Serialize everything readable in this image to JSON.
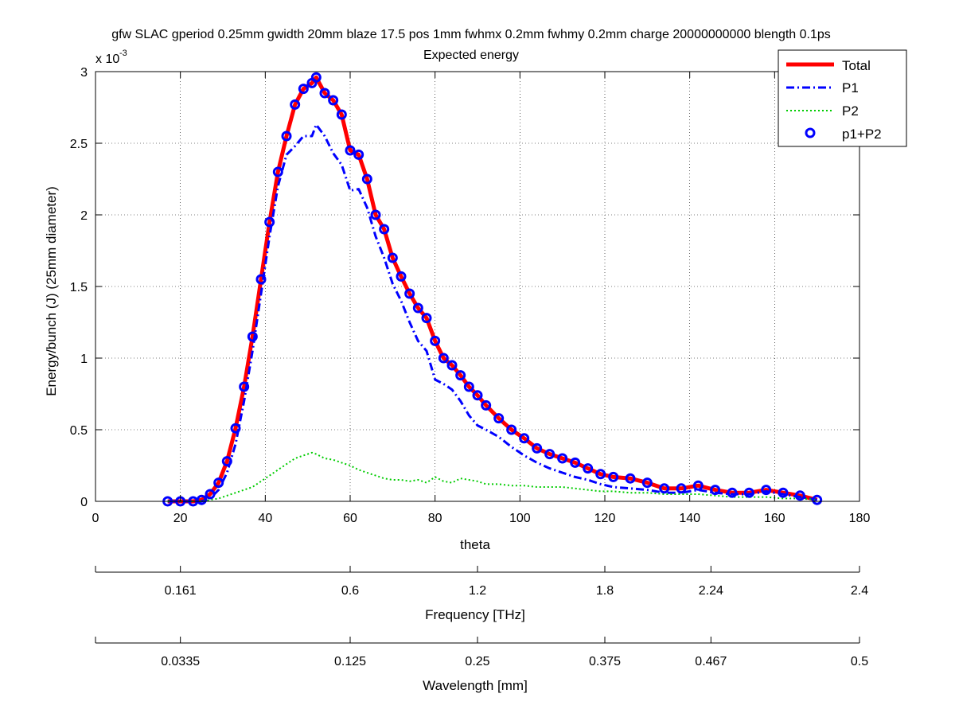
{
  "chart_data": {
    "type": "line",
    "title_line1": "gfw SLAC gperiod 0.25mm gwidth 20mm blaze 17.5 pos 1mm fwhmx 0.2mm fwhmy 0.2mm charge 20000000000 blength 0.1ps",
    "title_line2": "Expected energy",
    "xlabel": "theta",
    "ylabel": "Energy/bunch (J) (25mm diameter)",
    "y_exponent_base": "x 10",
    "y_exponent_power": "-3",
    "xlim": [
      0,
      180
    ],
    "ylim": [
      0,
      3
    ],
    "xticks": [
      0,
      20,
      40,
      60,
      80,
      100,
      120,
      140,
      160,
      180
    ],
    "yticks": [
      0,
      0.5,
      1,
      1.5,
      2,
      2.5,
      3
    ],
    "ytick_labels": [
      "0",
      "0.5",
      "1",
      "1.5",
      "2",
      "2.5",
      "3"
    ],
    "grid": true,
    "legend_position": "top-right",
    "series": [
      {
        "name": "Total",
        "color": "#ff0000",
        "style": "solid-thick",
        "x": [
          17,
          20,
          23,
          25,
          27,
          29,
          31,
          33,
          35,
          37,
          39,
          41,
          43,
          45,
          47,
          49,
          51,
          52,
          54,
          56,
          58,
          60,
          62,
          64,
          66,
          68,
          70,
          72,
          74,
          76,
          78,
          80,
          82,
          84,
          86,
          88,
          90,
          92,
          95,
          98,
          101,
          104,
          107,
          110,
          113,
          116,
          119,
          122,
          126,
          130,
          134,
          138,
          142,
          146,
          150,
          154,
          158,
          162,
          166,
          170
        ],
        "y": [
          0,
          0,
          0,
          0.01,
          0.05,
          0.13,
          0.28,
          0.51,
          0.8,
          1.15,
          1.55,
          1.95,
          2.3,
          2.55,
          2.77,
          2.88,
          2.92,
          2.96,
          2.85,
          2.8,
          2.7,
          2.45,
          2.42,
          2.25,
          2.0,
          1.9,
          1.7,
          1.57,
          1.45,
          1.35,
          1.28,
          1.12,
          1.0,
          0.95,
          0.88,
          0.8,
          0.74,
          0.67,
          0.58,
          0.5,
          0.44,
          0.37,
          0.33,
          0.3,
          0.27,
          0.23,
          0.19,
          0.17,
          0.16,
          0.13,
          0.09,
          0.09,
          0.11,
          0.08,
          0.06,
          0.06,
          0.08,
          0.06,
          0.04,
          0.01
        ]
      },
      {
        "name": "P1",
        "color": "#0000ff",
        "style": "dash-dot",
        "x": [
          17,
          20,
          23,
          25,
          27,
          29,
          31,
          33,
          35,
          37,
          39,
          41,
          43,
          45,
          47,
          49,
          51,
          52,
          54,
          56,
          58,
          60,
          62,
          64,
          66,
          68,
          70,
          72,
          74,
          76,
          78,
          80,
          82,
          84,
          86,
          88,
          90,
          92,
          95,
          98,
          101,
          104,
          107,
          110,
          113,
          116,
          119,
          122,
          126,
          130,
          134,
          138,
          142,
          146,
          150,
          154,
          158,
          162,
          166,
          170
        ],
        "y": [
          0,
          0,
          0,
          0,
          0.02,
          0.08,
          0.2,
          0.4,
          0.7,
          1.05,
          1.45,
          1.85,
          2.2,
          2.42,
          2.48,
          2.55,
          2.55,
          2.63,
          2.55,
          2.43,
          2.35,
          2.17,
          2.18,
          2.05,
          1.85,
          1.7,
          1.52,
          1.4,
          1.25,
          1.12,
          1.05,
          0.85,
          0.82,
          0.78,
          0.7,
          0.6,
          0.53,
          0.5,
          0.45,
          0.38,
          0.32,
          0.27,
          0.23,
          0.2,
          0.17,
          0.15,
          0.12,
          0.1,
          0.09,
          0.08,
          0.06,
          0.06,
          0.08,
          0.06,
          0.05,
          0.05,
          0.07,
          0.05,
          0.03,
          0.01
        ]
      },
      {
        "name": "P2",
        "color": "#00cc00",
        "style": "dotted",
        "x": [
          17,
          20,
          23,
          25,
          27,
          29,
          31,
          33,
          35,
          37,
          39,
          41,
          43,
          45,
          47,
          49,
          51,
          52,
          54,
          56,
          58,
          60,
          62,
          64,
          66,
          68,
          70,
          72,
          74,
          76,
          78,
          80,
          82,
          84,
          86,
          88,
          90,
          92,
          95,
          98,
          101,
          104,
          107,
          110,
          113,
          116,
          119,
          122,
          126,
          130,
          134,
          138,
          142,
          146,
          150,
          154,
          158,
          162,
          166,
          170
        ],
        "y": [
          0,
          0,
          0,
          0,
          0.01,
          0.02,
          0.04,
          0.06,
          0.08,
          0.1,
          0.14,
          0.18,
          0.22,
          0.26,
          0.3,
          0.32,
          0.34,
          0.33,
          0.3,
          0.29,
          0.27,
          0.25,
          0.22,
          0.2,
          0.18,
          0.16,
          0.15,
          0.15,
          0.14,
          0.15,
          0.13,
          0.17,
          0.14,
          0.13,
          0.16,
          0.15,
          0.14,
          0.12,
          0.12,
          0.11,
          0.11,
          0.1,
          0.1,
          0.1,
          0.09,
          0.08,
          0.07,
          0.07,
          0.06,
          0.06,
          0.05,
          0.05,
          0.05,
          0.04,
          0.03,
          0.03,
          0.03,
          0.02,
          0.02,
          0.01
        ]
      },
      {
        "name": "p1+P2",
        "color": "#0000ff",
        "style": "circle-markers",
        "x": [
          17,
          20,
          23,
          25,
          27,
          29,
          31,
          33,
          35,
          37,
          39,
          41,
          43,
          45,
          47,
          49,
          51,
          52,
          54,
          56,
          58,
          60,
          62,
          64,
          66,
          68,
          70,
          72,
          74,
          76,
          78,
          80,
          82,
          84,
          86,
          88,
          90,
          92,
          95,
          98,
          101,
          104,
          107,
          110,
          113,
          116,
          119,
          122,
          126,
          130,
          134,
          138,
          142,
          146,
          150,
          154,
          158,
          162,
          166,
          170
        ],
        "y": [
          0,
          0,
          0,
          0.01,
          0.05,
          0.13,
          0.28,
          0.51,
          0.8,
          1.15,
          1.55,
          1.95,
          2.3,
          2.55,
          2.77,
          2.88,
          2.92,
          2.96,
          2.85,
          2.8,
          2.7,
          2.45,
          2.42,
          2.25,
          2.0,
          1.9,
          1.7,
          1.57,
          1.45,
          1.35,
          1.28,
          1.12,
          1.0,
          0.95,
          0.88,
          0.8,
          0.74,
          0.67,
          0.58,
          0.5,
          0.44,
          0.37,
          0.33,
          0.3,
          0.27,
          0.23,
          0.19,
          0.17,
          0.16,
          0.13,
          0.09,
          0.09,
          0.11,
          0.08,
          0.06,
          0.06,
          0.08,
          0.06,
          0.04,
          0.01
        ]
      }
    ],
    "secondary_axes": [
      {
        "label": "Frequency [THz]",
        "tick_labels": [
          "0.161",
          "0.6",
          "1.2",
          "1.8",
          "2.24",
          "2.4"
        ],
        "tick_theta": [
          20,
          60,
          90,
          120,
          145,
          180
        ]
      },
      {
        "label": "Wavelength [mm]",
        "tick_labels": [
          "0.0335",
          "0.125",
          "0.25",
          "0.375",
          "0.467",
          "0.5"
        ],
        "tick_theta": [
          20,
          60,
          90,
          120,
          145,
          180
        ]
      }
    ]
  }
}
